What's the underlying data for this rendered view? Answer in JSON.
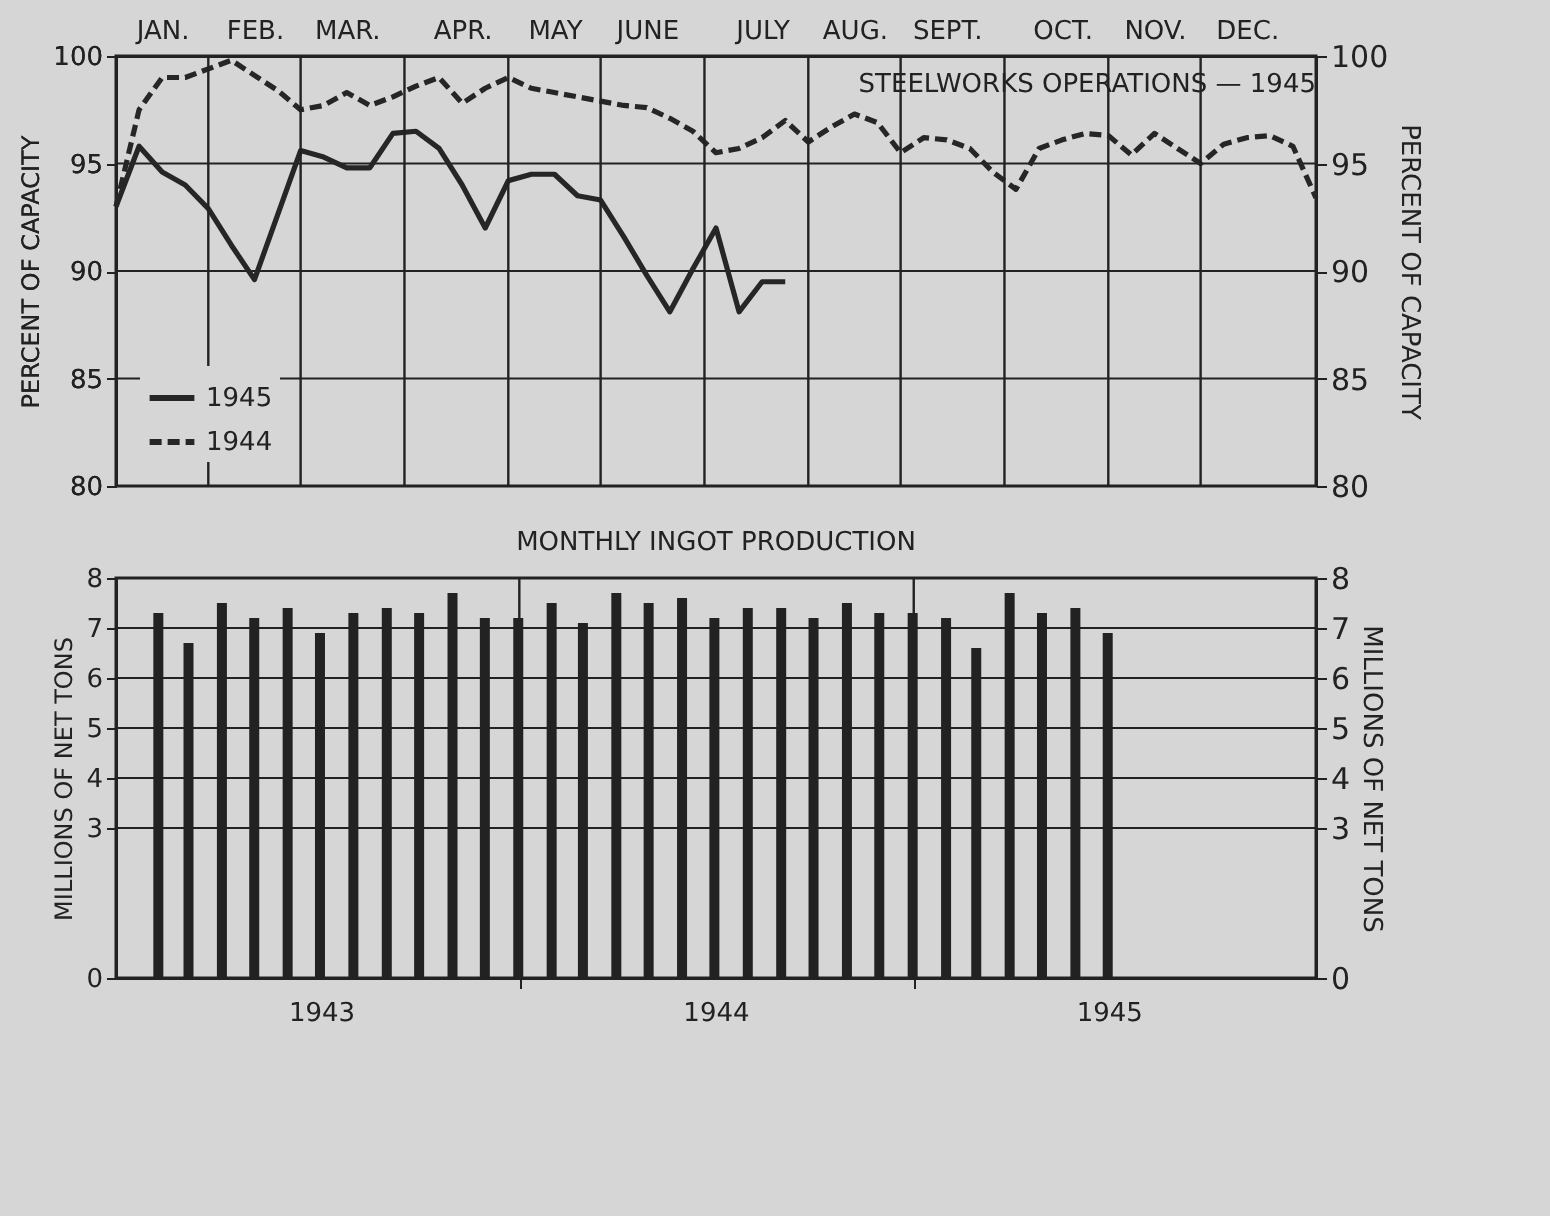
{
  "chart_data": [
    {
      "type": "line",
      "title": "STEELWORKS OPERATIONS — 1945",
      "ylabel": "PERCENT OF CAPACITY",
      "y2label": "PERCENT OF CAPACITY",
      "categories": [
        null,
        null,
        "JAN.",
        null,
        null,
        null,
        "FEB.",
        null,
        null,
        null,
        "MAR.",
        null,
        null,
        null,
        null,
        "APR.",
        null,
        null,
        null,
        "MAY",
        null,
        null,
        null,
        "JUNE",
        null,
        null,
        null,
        null,
        "JULY",
        null,
        null,
        null,
        "AUG.",
        null,
        null,
        null,
        "SEPT.",
        null,
        null,
        null,
        null,
        "OCT.",
        null,
        null,
        null,
        "NOV.",
        null,
        null,
        null,
        "DEC.",
        null,
        null,
        null
      ],
      "ylim": [
        80,
        100
      ],
      "yticks": [
        80,
        85,
        90,
        95,
        100
      ],
      "y2lim": [
        80,
        100
      ],
      "y2ticks": [
        80,
        85,
        90,
        95,
        100
      ],
      "grid": true,
      "legend": "bottom left",
      "marker": "none",
      "series": [
        {
          "name": "1945",
          "color": "#262626",
          "line_style": "solid",
          "values": [
            93,
            95.8,
            94.6,
            94,
            92.9,
            91.2,
            89.6,
            92.6,
            95.6,
            95.3,
            94.8,
            94.8,
            96.4,
            96.5,
            95.7,
            94,
            92,
            94.2,
            94.5,
            94.5,
            93.5,
            93.3,
            91.6,
            89.8,
            88.1,
            90.1,
            92,
            88.1,
            89.5,
            89.5,
            null,
            null,
            null,
            null,
            null,
            null,
            null,
            null,
            null,
            null,
            null,
            null,
            null,
            null,
            null,
            null,
            null,
            null,
            null,
            null,
            null,
            null,
            null
          ]
        },
        {
          "name": "1944",
          "color": "#262626",
          "line_style": "dashed",
          "values": [
            93,
            97.5,
            99,
            99,
            99.4,
            99.8,
            99.1,
            98.4,
            97.5,
            97.7,
            98.3,
            97.7,
            98.1,
            98.6,
            99,
            97.8,
            98.5,
            99,
            98.5,
            98.3,
            98.1,
            97.9,
            97.7,
            97.6,
            97.1,
            96.5,
            95.5,
            95.7,
            96.2,
            97,
            96,
            96.7,
            97.3,
            96.9,
            95.5,
            96.2,
            96.1,
            95.7,
            94.6,
            93.8,
            95.7,
            96.1,
            96.4,
            96.3,
            95.4,
            96.4,
            95.7,
            95,
            95.9,
            96.2,
            96.3,
            95.8,
            93.4
          ]
        }
      ]
    },
    {
      "type": "bar",
      "title": "MONTHLY INGOT PRODUCTION",
      "ylabel": "MILLIONS OF NET TONS",
      "y2label": "MILLIONS OF NET TONS",
      "xlim": [
        "1943-01-01",
        "1945-12-31"
      ],
      "xticks": [
        {
          "value": "1943-07-01",
          "label": "1943"
        },
        {
          "value": "1944-01-01",
          "label": null
        },
        {
          "value": "1944-07-01",
          "label": "1944"
        },
        {
          "value": "1945-01-01",
          "label": null
        },
        {
          "value": "1945-07-01",
          "label": "1945"
        }
      ],
      "ylim": [
        0,
        8
      ],
      "yticks": [
        0,
        3,
        4,
        5,
        6,
        7,
        8
      ],
      "y2lim": [
        0,
        8
      ],
      "y2ticks": [
        0,
        3,
        4,
        5,
        6,
        7,
        8
      ],
      "grid": true,
      "x": [
        "1943-01-31",
        "1943-02-28",
        "1943-03-31",
        "1943-04-30",
        "1943-05-31",
        "1943-06-30",
        "1943-07-31",
        "1943-08-31",
        "1943-09-30",
        "1943-10-31",
        "1943-11-30",
        "1943-12-31",
        "1944-01-31",
        "1944-02-29",
        "1944-03-31",
        "1944-04-30",
        "1944-05-31",
        "1944-06-30",
        "1944-07-31",
        "1944-08-31",
        "1944-09-30",
        "1944-10-31",
        "1944-11-30",
        "1944-12-31",
        "1945-01-31",
        "1945-02-28",
        "1945-03-31",
        "1945-04-30",
        "1945-05-31",
        "1945-06-30"
      ],
      "series": [
        {
          "color": "#222222",
          "values": [
            7.3,
            6.7,
            7.5,
            7.2,
            7.4,
            6.9,
            7.3,
            7.4,
            7.3,
            7.7,
            7.2,
            7.2,
            7.5,
            7.1,
            7.7,
            7.5,
            7.6,
            7.2,
            7.4,
            7.4,
            7.2,
            7.5,
            7.3,
            7.3,
            7.2,
            6.6,
            7.7,
            7.3,
            7.4,
            6.9
          ]
        }
      ]
    }
  ]
}
